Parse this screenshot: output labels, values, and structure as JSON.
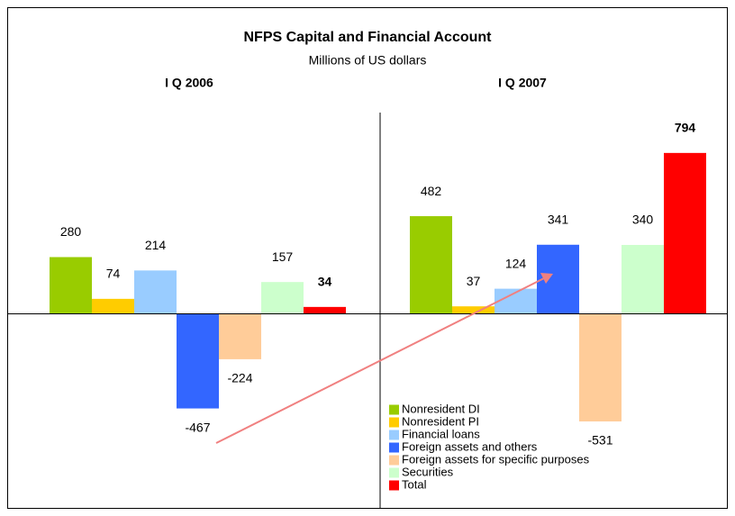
{
  "chart_data": {
    "type": "bar",
    "title": "NFPS Capital and Financial Account",
    "subtitle": "Millions of US dollars",
    "categories": [
      "I Q 2006",
      "I Q 2007"
    ],
    "series": [
      {
        "name": "Nonresident DI",
        "color": "#99cc00",
        "values": [
          280,
          482
        ]
      },
      {
        "name": "Nonresident PI",
        "color": "#ffcc00",
        "values": [
          74,
          37
        ]
      },
      {
        "name": "Financial loans",
        "color": "#99ccff",
        "values": [
          214,
          124
        ]
      },
      {
        "name": "Foreign assets and others",
        "color": "#3366ff",
        "values": [
          -467,
          341
        ]
      },
      {
        "name": "Foreign assets for specific purposes",
        "color": "#ffcc99",
        "values": [
          -224,
          -531
        ]
      },
      {
        "name": "Securities",
        "color": "#ccffcc",
        "values": [
          157,
          340
        ]
      },
      {
        "name": "Total",
        "color": "#ff0000",
        "values": [
          34,
          794
        ]
      }
    ]
  }
}
